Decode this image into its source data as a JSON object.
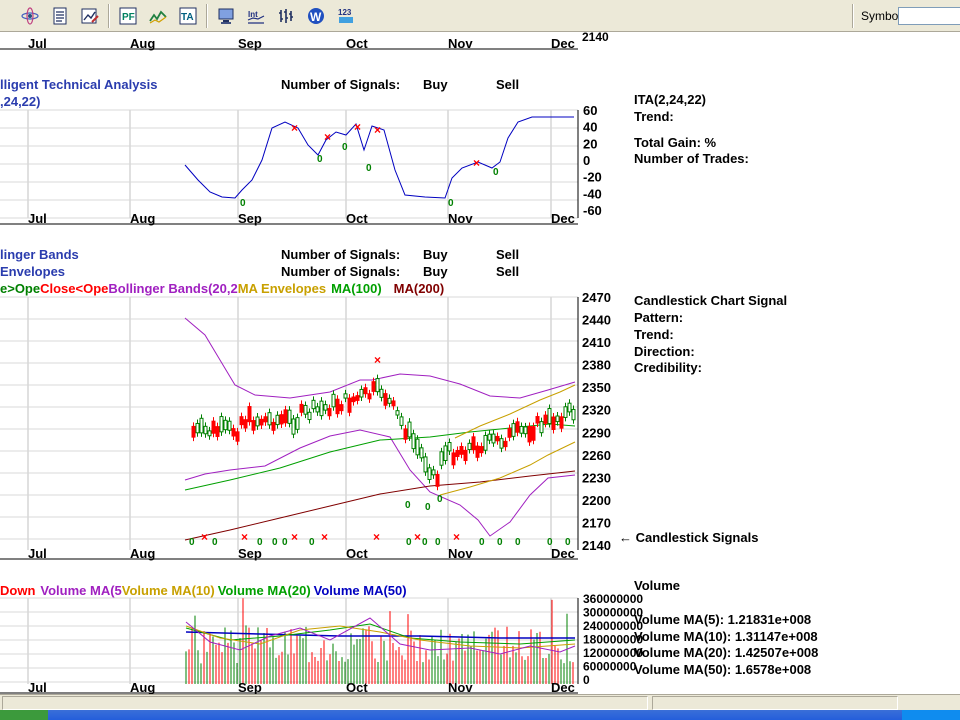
{
  "toolbar": {
    "icons": [
      "atom-icon",
      "document-list-icon",
      "chart-edit-icon",
      "pf-chart-icon",
      "line-chart-icon",
      "ta-icon",
      "monitor-icon",
      "int-chart-icon",
      "bar-chart-icon",
      "web-icon",
      "count-123-icon"
    ],
    "symbol_label": "Symbol",
    "symbol_value": ""
  },
  "months": [
    "Jul",
    "Aug",
    "Sep",
    "Oct",
    "Nov",
    "Dec"
  ],
  "top_strip": {
    "price_tick": "2140"
  },
  "ita_panel": {
    "title": "lligent Technical Analysis",
    "subtitle": ",24,22)",
    "signals_label": "Number of Signals:",
    "buy_label": "Buy",
    "sell_label": "Sell",
    "y_ticks": [
      "60",
      "40",
      "20",
      "0",
      "-20",
      "-40",
      "-60"
    ],
    "signal_glyphs": {
      "buy": "0",
      "sell": "×"
    },
    "info": {
      "name": "ITA(2,24,22)",
      "trend": "Trend:",
      "gain": "Total Gain:  %",
      "trades": "Number of Trades:"
    }
  },
  "price_panel": {
    "bb_label": "linger Bands",
    "env_label": "Envelopes",
    "signals_label": "Number of Signals:",
    "buy_label": "Buy",
    "sell_label": "Sell",
    "legend": [
      {
        "text": "e>Ope",
        "color": "#008000"
      },
      {
        "text": "Close<Ope",
        "color": "#ff0000"
      },
      {
        "text": "Bollinger Bands(20,2",
        "color": "#a020c0"
      },
      {
        "text": "MA Envelopes",
        "color": "#c8a000"
      },
      {
        "text": "MA(100)",
        "color": "#00a000"
      },
      {
        "text": "MA(200)",
        "color": "#800000"
      }
    ],
    "y_ticks": [
      "2470",
      "2440",
      "2410",
      "2380",
      "2350",
      "2320",
      "2290",
      "2260",
      "2230",
      "2200",
      "2170",
      "2140"
    ],
    "signals_caption": "← Candlestick Signals",
    "info": {
      "title": "Candlestick Chart Signal",
      "pattern": "Pattern:",
      "trend": "Trend:",
      "direction": "Direction:",
      "credibility": "Credibility:"
    }
  },
  "volume_panel": {
    "legend": [
      {
        "text": "Down",
        "color": "#ff0000"
      },
      {
        "text": "Volume MA(5",
        "color": "#a020c0"
      },
      {
        "text": "Volume MA(10)",
        "color": "#c8a000"
      },
      {
        "text": "Volume MA(20)",
        "color": "#00a000"
      },
      {
        "text": "Volume MA(50)",
        "color": "#0000c0"
      }
    ],
    "y_ticks": [
      "360000000",
      "300000000",
      "240000000",
      "180000000",
      "120000000",
      "60000000",
      "0"
    ],
    "info": {
      "title": "Volume",
      "ma5": "Volume MA(5):  1.21831e+008",
      "ma10": "Volume MA(10):  1.31147e+008",
      "ma20": "Volume MA(20):  1.42507e+008",
      "ma50": "Volume MA(50):  1.6578e+008"
    }
  },
  "colors": {
    "ita_line": "#0000c0",
    "up": "#008000",
    "down": "#ff0000",
    "bb": "#a020c0",
    "env": "#c8a000",
    "ma100": "#00a000",
    "ma200": "#800000",
    "vol_ma50": "#0000c0"
  }
}
